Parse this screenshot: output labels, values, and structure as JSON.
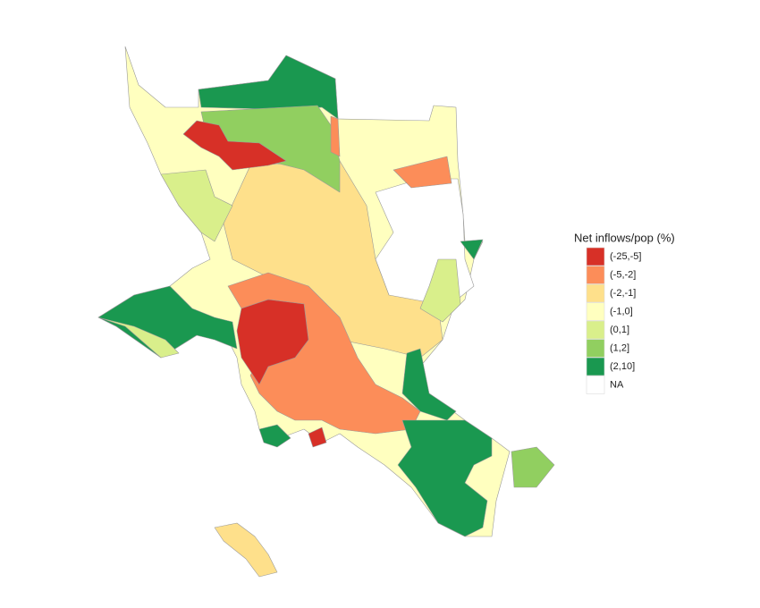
{
  "legend": {
    "title": "Net inflows/pop (%)",
    "items": [
      {
        "label": "(-25,-5]",
        "color": "#d73027"
      },
      {
        "label": "(-5,-2]",
        "color": "#fc8d59"
      },
      {
        "label": "(-2,-1]",
        "color": "#fee08b"
      },
      {
        "label": "(-1,0]",
        "color": "#ffffbf"
      },
      {
        "label": "(0,1]",
        "color": "#d9ef8b"
      },
      {
        "label": "(1,2]",
        "color": "#91cf60"
      },
      {
        "label": "(2,10]",
        "color": "#1a9850"
      },
      {
        "label": "NA",
        "color": "#ffffff"
      }
    ]
  }
}
